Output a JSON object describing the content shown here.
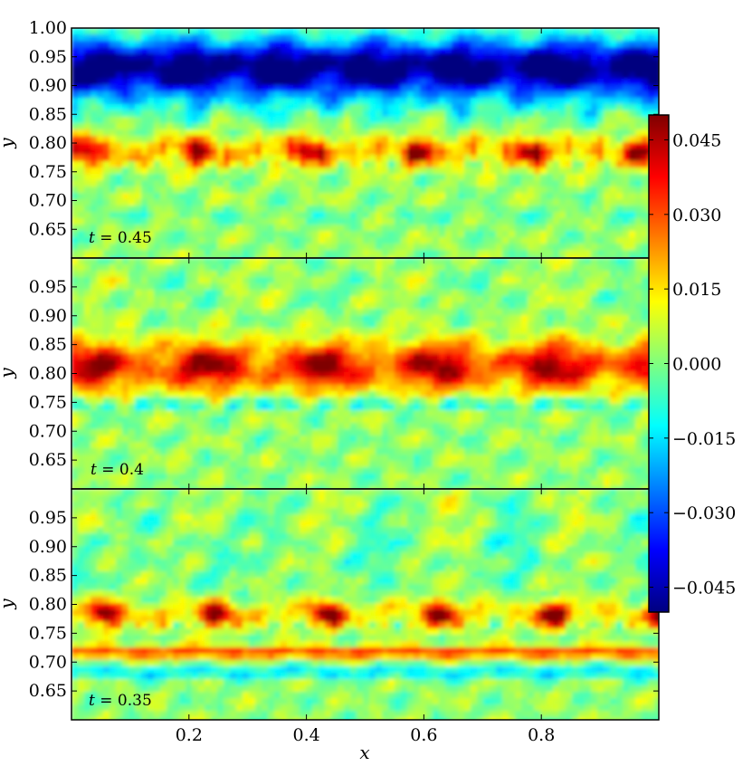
{
  "chart_data": [
    {
      "type": "heatmap",
      "panel": "top",
      "title": "",
      "annotation": {
        "label": "t",
        "value": "0.45"
      },
      "xlabel": "",
      "ylabel": "y",
      "xlim": [
        0.0,
        1.0
      ],
      "ylim": [
        0.6,
        1.0
      ],
      "yticks": [
        "0.65",
        "0.70",
        "0.75",
        "0.80",
        "0.85",
        "0.90",
        "0.95",
        "1.00"
      ],
      "features": [
        {
          "y": 0.925,
          "value": -0.05,
          "description": "strong negative band"
        },
        {
          "y": 0.78,
          "value": 0.035,
          "description": "positive clumps"
        }
      ]
    },
    {
      "type": "heatmap",
      "panel": "middle",
      "title": "",
      "annotation": {
        "label": "t",
        "value": "0.4"
      },
      "xlabel": "",
      "ylabel": "y",
      "xlim": [
        0.0,
        1.0
      ],
      "ylim": [
        0.6,
        1.0
      ],
      "yticks": [
        "0.65",
        "0.70",
        "0.75",
        "0.80",
        "0.85",
        "0.90",
        "0.95"
      ],
      "features": [
        {
          "y": 0.815,
          "value": 0.045,
          "description": "strong positive band"
        },
        {
          "y": 0.745,
          "value": -0.015,
          "description": "negative strip"
        }
      ]
    },
    {
      "type": "heatmap",
      "panel": "bottom",
      "title": "",
      "annotation": {
        "label": "t",
        "value": "0.35"
      },
      "xlabel": "x",
      "ylabel": "y",
      "xlim": [
        0.0,
        1.0
      ],
      "ylim": [
        0.6,
        1.0
      ],
      "xticks": [
        "0.2",
        "0.4",
        "0.6",
        "0.8"
      ],
      "yticks": [
        "0.65",
        "0.70",
        "0.75",
        "0.80",
        "0.85",
        "0.90",
        "0.95"
      ],
      "features": [
        {
          "y": 0.78,
          "value": 0.04,
          "description": "positive clumps"
        },
        {
          "y": 0.715,
          "value": 0.03,
          "description": "thin positive band"
        },
        {
          "y": 0.68,
          "value": -0.015,
          "description": "thin negative band"
        }
      ]
    }
  ],
  "colorbar": {
    "range": [
      -0.05,
      0.05
    ],
    "ticks": [
      "0.045",
      "0.030",
      "0.015",
      "0.000",
      "−0.015",
      "−0.030",
      "−0.045"
    ],
    "tick_values": [
      0.045,
      0.03,
      0.015,
      0.0,
      -0.015,
      -0.03,
      -0.045
    ],
    "colormap": "jet",
    "colormap_colors": [
      "#00007f",
      "#0000ff",
      "#007fff",
      "#00ffff",
      "#7fff7f",
      "#ffff00",
      "#ff7f00",
      "#ff0000",
      "#7f0000"
    ]
  }
}
